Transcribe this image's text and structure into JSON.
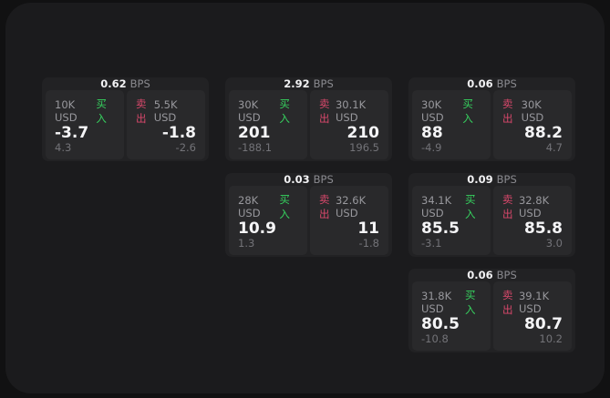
{
  "labels": {
    "bps_unit": "BPS",
    "buy": "买入",
    "sell": "卖出"
  },
  "colors": {
    "buy_green": "#36d35f",
    "sell_red": "#d9486b",
    "panel_bg": "#1b1b1d",
    "card_bg": "#222224",
    "pane_bg": "#29292b"
  },
  "cards": [
    {
      "bps": "0.62",
      "buy": {
        "amount": "10K USD",
        "price": "-3.7",
        "delta": "4.3"
      },
      "sell": {
        "amount": "5.5K USD",
        "price": "-1.8",
        "delta": "-2.6"
      }
    },
    {
      "bps": "2.92",
      "buy": {
        "amount": "30K USD",
        "price": "201",
        "delta": "-188.1"
      },
      "sell": {
        "amount": "30.1K USD",
        "price": "210",
        "delta": "196.5"
      }
    },
    {
      "bps": "0.06",
      "buy": {
        "amount": "30K USD",
        "price": "88",
        "delta": "-4.9"
      },
      "sell": {
        "amount": "30K USD",
        "price": "88.2",
        "delta": "4.7"
      }
    },
    {
      "bps": "0.03",
      "buy": {
        "amount": "28K USD",
        "price": "10.9",
        "delta": "1.3"
      },
      "sell": {
        "amount": "32.6K USD",
        "price": "11",
        "delta": "-1.8"
      }
    },
    {
      "bps": "0.09",
      "buy": {
        "amount": "34.1K USD",
        "price": "85.5",
        "delta": "-3.1"
      },
      "sell": {
        "amount": "32.8K USD",
        "price": "85.8",
        "delta": "3.0"
      }
    },
    {
      "bps": "0.06",
      "buy": {
        "amount": "31.8K USD",
        "price": "80.5",
        "delta": "-10.8"
      },
      "sell": {
        "amount": "39.1K USD",
        "price": "80.7",
        "delta": "10.2"
      }
    }
  ]
}
